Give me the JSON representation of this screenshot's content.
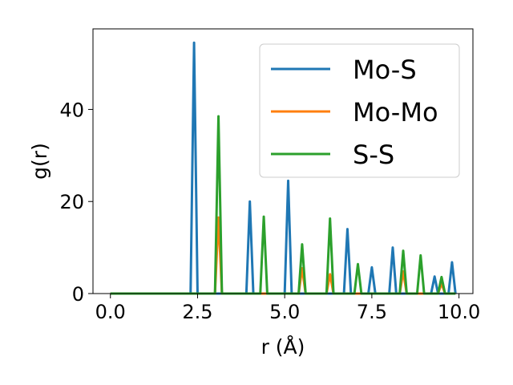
{
  "chart_data": {
    "type": "line",
    "xlabel": "r (Å)",
    "ylabel": "g(r)",
    "xlim": [
      -0.5,
      10.4
    ],
    "ylim": [
      0,
      57.5
    ],
    "xticks": [
      0.0,
      2.5,
      5.0,
      7.5,
      10.0
    ],
    "xtick_labels": [
      "0.0",
      "2.5",
      "5.0",
      "7.5",
      "10.0"
    ],
    "yticks": [
      0,
      20,
      40
    ],
    "ytick_labels": [
      "0",
      "20",
      "40"
    ],
    "grid": false,
    "legend_position": "top-right",
    "series": [
      {
        "name": "Mo-S",
        "color": "#1f77b4",
        "points": [
          [
            0.0,
            0
          ],
          [
            2.3,
            0
          ],
          [
            2.4,
            54.5
          ],
          [
            2.5,
            0
          ],
          [
            3.9,
            0
          ],
          [
            4.0,
            20
          ],
          [
            4.1,
            0
          ],
          [
            5.0,
            0
          ],
          [
            5.1,
            24.5
          ],
          [
            5.2,
            0
          ],
          [
            6.7,
            0
          ],
          [
            6.8,
            14
          ],
          [
            6.9,
            0
          ],
          [
            7.4,
            0
          ],
          [
            7.5,
            5.7
          ],
          [
            7.6,
            0
          ],
          [
            8.0,
            0
          ],
          [
            8.1,
            10
          ],
          [
            8.2,
            0
          ],
          [
            9.2,
            0
          ],
          [
            9.3,
            3.7
          ],
          [
            9.4,
            0
          ],
          [
            9.7,
            0
          ],
          [
            9.8,
            6.8
          ],
          [
            9.9,
            0
          ]
        ]
      },
      {
        "name": "Mo-Mo",
        "color": "#ff7f0e",
        "points": [
          [
            0.0,
            0
          ],
          [
            3.0,
            0
          ],
          [
            3.1,
            16.5
          ],
          [
            3.2,
            0
          ],
          [
            5.4,
            0
          ],
          [
            5.5,
            5.5
          ],
          [
            5.6,
            0
          ],
          [
            6.2,
            0
          ],
          [
            6.3,
            4.2
          ],
          [
            6.4,
            0
          ],
          [
            8.3,
            0
          ],
          [
            8.4,
            4.8
          ],
          [
            8.5,
            0
          ],
          [
            9.4,
            0
          ],
          [
            9.5,
            2.2
          ],
          [
            9.6,
            0
          ],
          [
            9.9,
            0
          ]
        ]
      },
      {
        "name": "S-S",
        "color": "#2ca02c",
        "points": [
          [
            0.0,
            0
          ],
          [
            3.0,
            0
          ],
          [
            3.1,
            38.5
          ],
          [
            3.2,
            0
          ],
          [
            4.3,
            0
          ],
          [
            4.4,
            16.7
          ],
          [
            4.5,
            0
          ],
          [
            5.4,
            0
          ],
          [
            5.5,
            10.7
          ],
          [
            5.6,
            0
          ],
          [
            6.2,
            0
          ],
          [
            6.3,
            16.3
          ],
          [
            6.4,
            0
          ],
          [
            7.0,
            0
          ],
          [
            7.1,
            6.4
          ],
          [
            7.2,
            0
          ],
          [
            8.3,
            0
          ],
          [
            8.4,
            9.3
          ],
          [
            8.5,
            0
          ],
          [
            8.8,
            0
          ],
          [
            8.9,
            8.3
          ],
          [
            9.0,
            0
          ],
          [
            9.4,
            0
          ],
          [
            9.5,
            3.6
          ],
          [
            9.6,
            0
          ],
          [
            9.9,
            0
          ]
        ]
      }
    ]
  }
}
